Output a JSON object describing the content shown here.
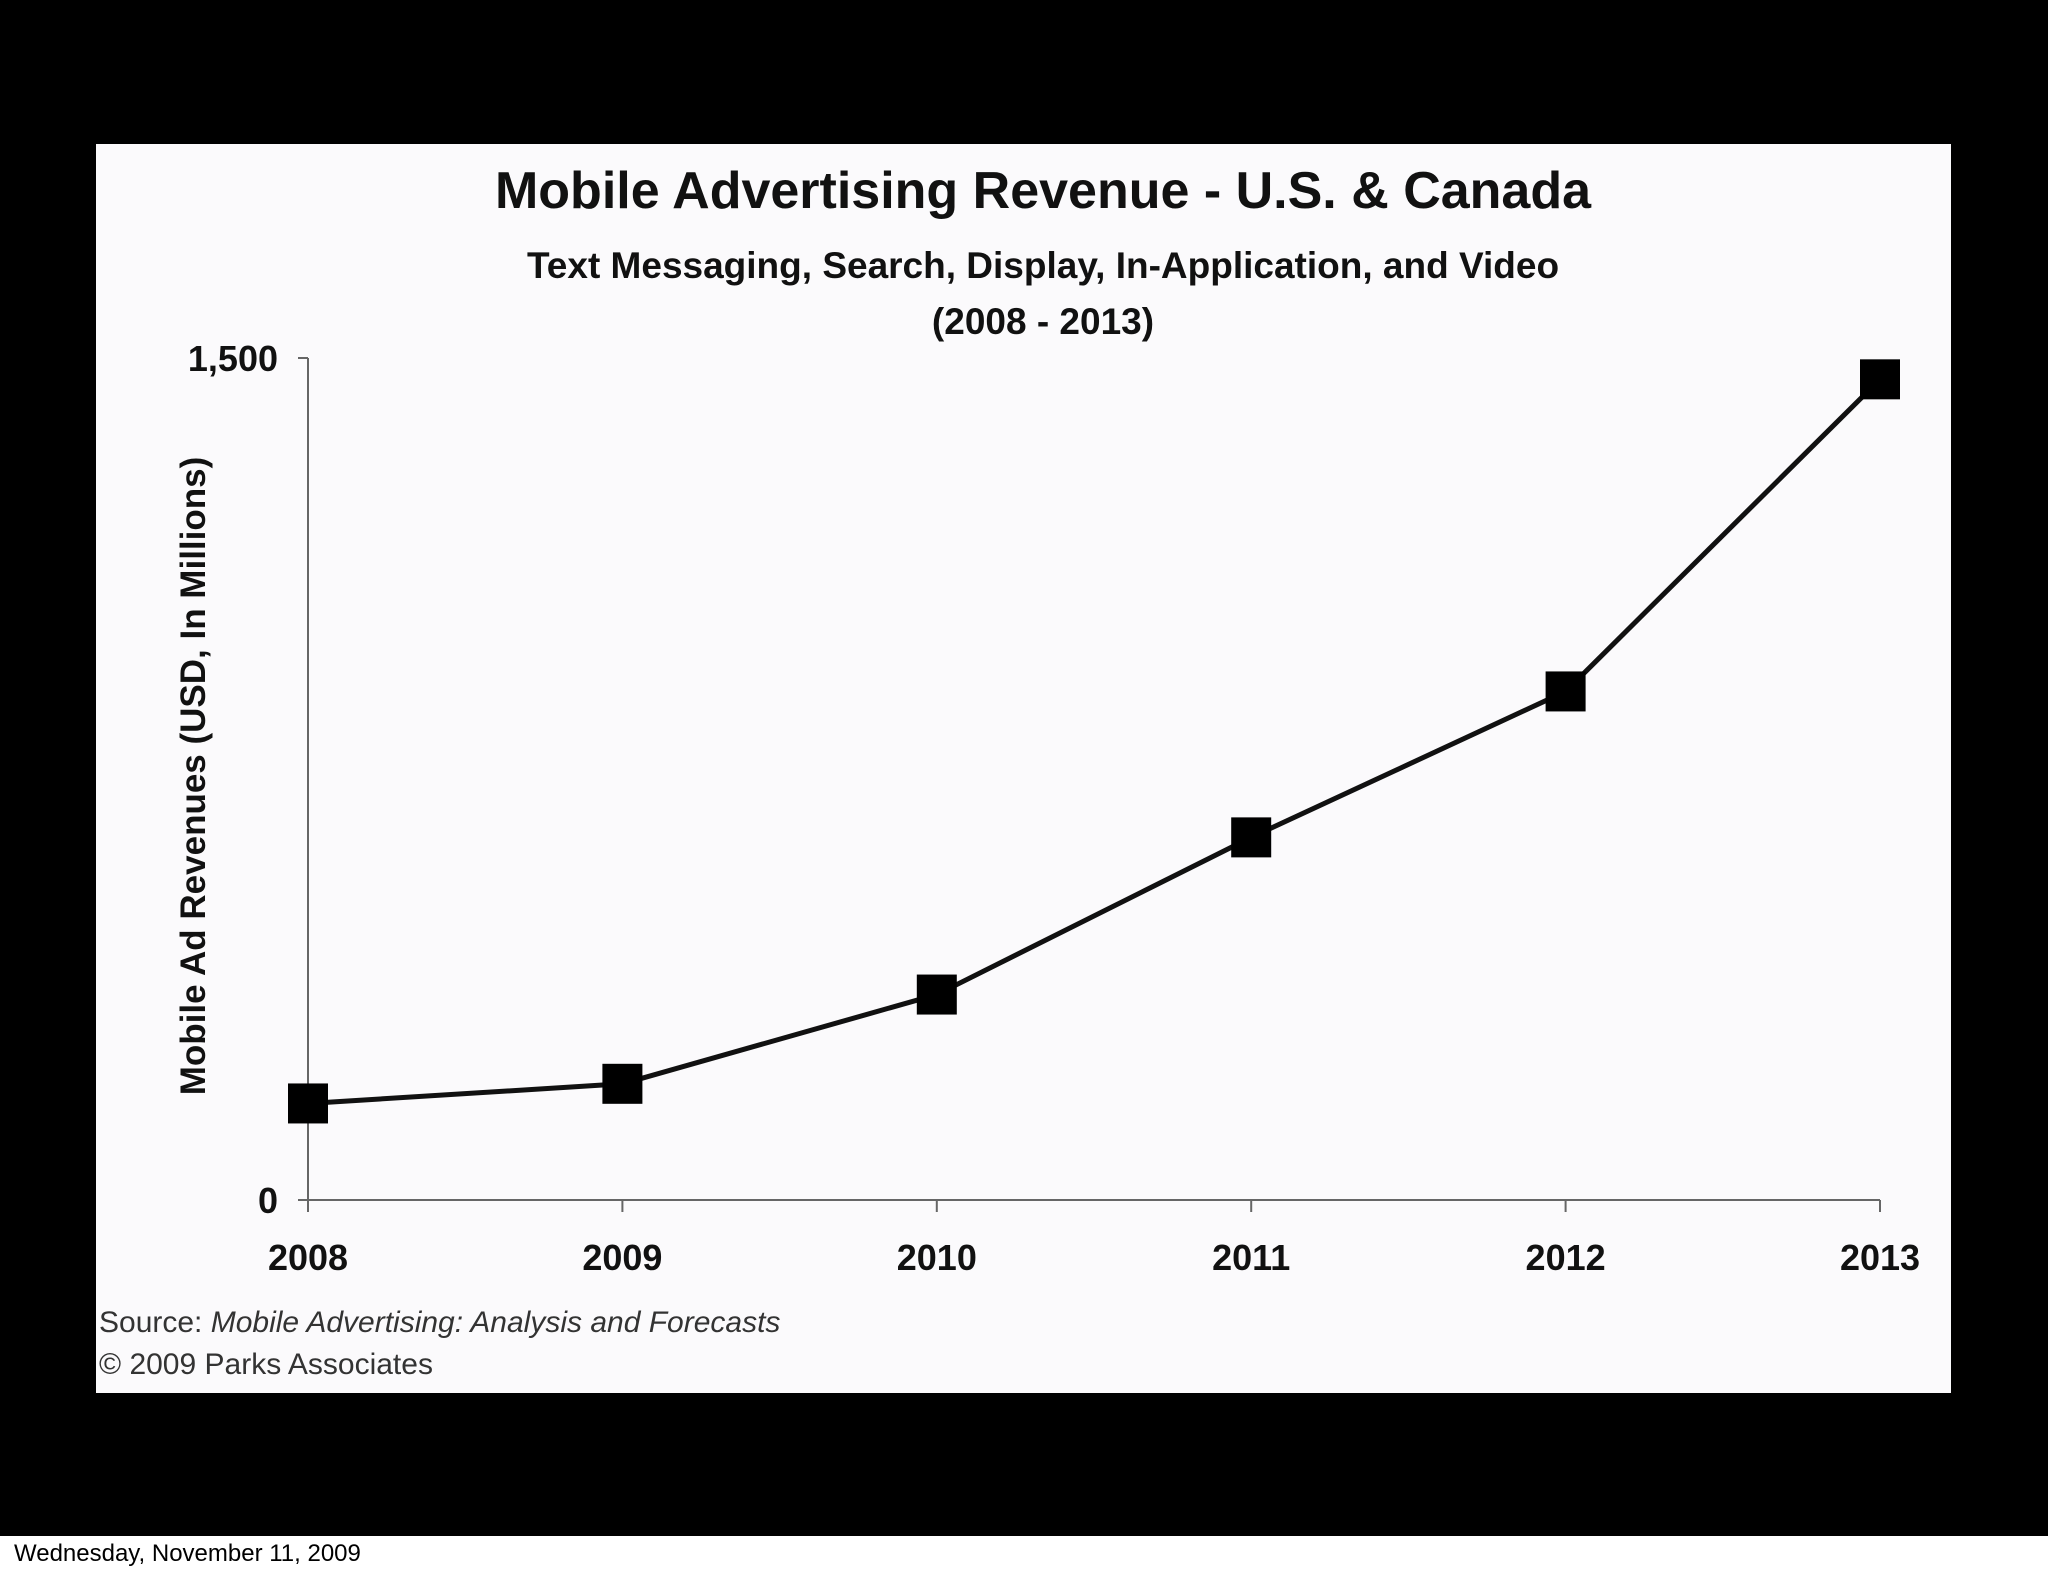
{
  "chart_data": {
    "type": "line",
    "title": "Mobile Advertising Revenue - U.S. & Canada",
    "subtitle": "Text Messaging, Search, Display, In-Application, and Video",
    "subtitle_range": "(2008 - 2013)",
    "xlabel": "",
    "ylabel": "Mobile Ad Revenues (USD, In Millions)",
    "categories": [
      "2008",
      "2009",
      "2010",
      "2011",
      "2012",
      "2013"
    ],
    "values": [
      172,
      207,
      366,
      646,
      906,
      1462
    ],
    "ylim": [
      0,
      1500
    ],
    "y_ticks": [
      "0",
      "1,500"
    ],
    "grid": false,
    "legend": "none",
    "source_prefix": "Source: ",
    "source_title": "Mobile Advertising: Analysis and Forecasts",
    "copyright": "© 2009 Parks Associates",
    "colors": {
      "background": "#000000",
      "panel": "#fbfafc",
      "line": "#111111",
      "marker": "#000000",
      "axis": "#666666"
    }
  },
  "footer": {
    "date": "Wednesday, November 11, 2009"
  }
}
